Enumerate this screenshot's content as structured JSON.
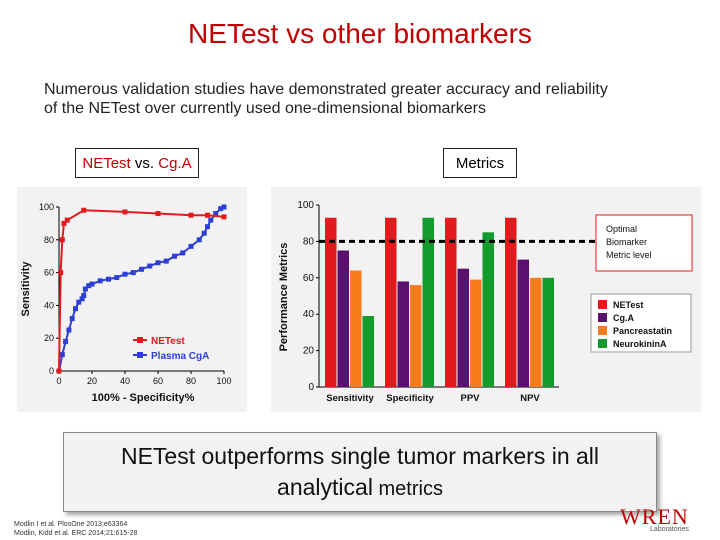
{
  "slide": {
    "title": "NETest vs other biomarkers",
    "subtitle_line1": "Numerous validation studies have demonstrated greater accuracy and reliability",
    "subtitle_line2": "of the NETest over currently used one-dimensional biomarkers"
  },
  "tags": {
    "left_a": "NETest",
    "left_b": " vs. ",
    "left_c": "Cg.A",
    "right": "Metrics"
  },
  "callout": {
    "line1": "NETest outperforms single tumor markers in all",
    "line2a": "analytical",
    "line2b": " metrics"
  },
  "references": {
    "line1": "Modlin I et al. PlosOne 2013;e63364",
    "line2": "Modlin, Kidd et al. ERC 2014;21:615-28"
  },
  "logo": {
    "word": "WREN",
    "sub": "Laboratories"
  },
  "colors": {
    "title": "#c00000",
    "netest": "#e31a1c",
    "cga": "#5b0f6e",
    "pancreastatin": "#f97c1c",
    "neurokinin": "#139b2e",
    "plasma_cga_line": "#2e3fd6"
  },
  "chart_data": [
    {
      "type": "line",
      "title": "",
      "xlabel": "100% - Specificity%",
      "ylabel": "Sensitivity",
      "xlim": [
        0,
        100
      ],
      "ylim": [
        0,
        100
      ],
      "x_ticks": [
        "0",
        "20",
        "40",
        "60",
        "80",
        "100"
      ],
      "y_ticks": [
        "0",
        "20",
        "40",
        "60",
        "80",
        "100"
      ],
      "legend": "bottom-right",
      "series": [
        {
          "name": "NETest",
          "color": "#e31a1c",
          "x": [
            0,
            1,
            2,
            3,
            5,
            15,
            40,
            60,
            80,
            90,
            100
          ],
          "y": [
            0,
            60,
            80,
            90,
            92,
            98,
            97,
            96,
            95,
            95,
            94
          ]
        },
        {
          "name": "Plasma CgA",
          "color": "#2e3fd6",
          "x": [
            0,
            2,
            4,
            6,
            8,
            10,
            12,
            14,
            15,
            16,
            18,
            20,
            25,
            30,
            35,
            40,
            45,
            50,
            55,
            60,
            65,
            70,
            75,
            80,
            85,
            88,
            90,
            92,
            95,
            98,
            100
          ],
          "y": [
            0,
            10,
            18,
            25,
            32,
            38,
            42,
            44,
            46,
            50,
            52,
            53,
            55,
            56,
            57,
            59,
            60,
            62,
            64,
            66,
            67,
            70,
            72,
            76,
            80,
            84,
            88,
            92,
            96,
            99,
            100
          ]
        }
      ]
    },
    {
      "type": "bar",
      "title": "",
      "xlabel": "",
      "ylabel": "Performance Metrics",
      "ylim": [
        0,
        100
      ],
      "y_ticks": [
        "0",
        "20",
        "40",
        "60",
        "80",
        "100"
      ],
      "categories": [
        "Sensitivity",
        "Specificity",
        "PPV",
        "NPV"
      ],
      "series": [
        {
          "name": "NETest",
          "color": "#e31a1c",
          "values": [
            93,
            93,
            93,
            93
          ]
        },
        {
          "name": "Cg.A",
          "color": "#5b0f6e",
          "values": [
            75,
            58,
            65,
            70
          ]
        },
        {
          "name": "Pancreastatin",
          "color": "#f97c1c",
          "values": [
            64,
            56,
            59,
            60
          ]
        },
        {
          "name": "NeurokininA",
          "color": "#139b2e",
          "values": [
            39,
            93,
            85,
            60
          ]
        }
      ],
      "threshold": {
        "value": 80,
        "label_line1": "Optimal",
        "label_line2": "Biomarker",
        "label_line3": "Metric level"
      },
      "legend": "right"
    }
  ]
}
